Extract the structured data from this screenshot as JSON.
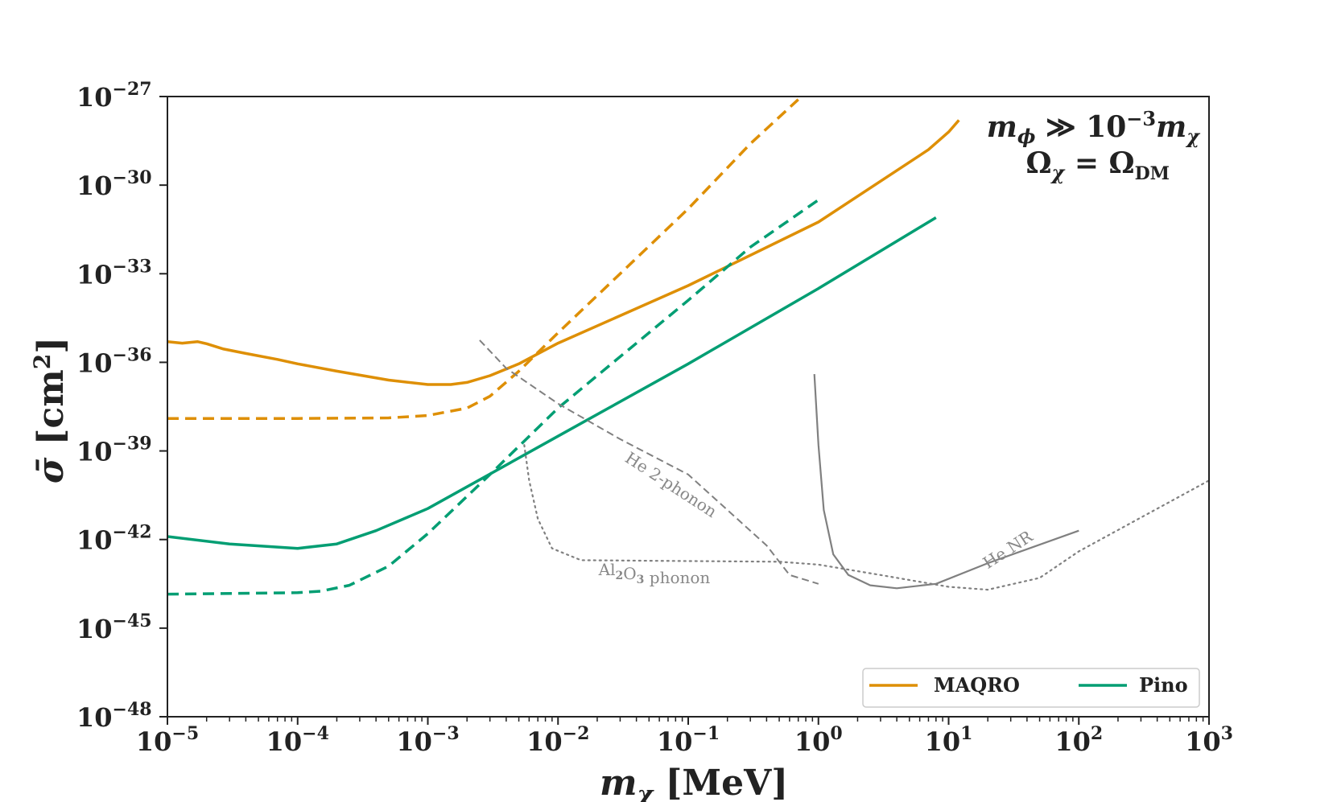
{
  "chart_data": {
    "type": "line",
    "xscale": "log",
    "yscale": "log",
    "xlim": [
      1e-05,
      1000
    ],
    "ylim": [
      1e-48,
      1e-27
    ],
    "xlabel": {
      "main": "m",
      "sub": "χ",
      "unit": " [MeV]"
    },
    "ylabel": {
      "main": "σ̄",
      "unit": " [cm",
      "sup": "2",
      "close": "]"
    },
    "x_ticks": [
      {
        "base": "10",
        "exp": "−5",
        "value": 1e-05
      },
      {
        "base": "10",
        "exp": "−4",
        "value": 0.0001
      },
      {
        "base": "10",
        "exp": "−3",
        "value": 0.001
      },
      {
        "base": "10",
        "exp": "−2",
        "value": 0.01
      },
      {
        "base": "10",
        "exp": "−1",
        "value": 0.1
      },
      {
        "base": "10",
        "exp": "0",
        "value": 1
      },
      {
        "base": "10",
        "exp": "1",
        "value": 10
      },
      {
        "base": "10",
        "exp": "2",
        "value": 100
      },
      {
        "base": "10",
        "exp": "3",
        "value": 1000
      }
    ],
    "y_ticks": [
      {
        "base": "10",
        "exp": "−27",
        "value": 1e-27
      },
      {
        "base": "10",
        "exp": "−30",
        "value": 1e-30
      },
      {
        "base": "10",
        "exp": "−33",
        "value": 1e-33
      },
      {
        "base": "10",
        "exp": "−36",
        "value": 1e-36
      },
      {
        "base": "10",
        "exp": "−39",
        "value": 1e-39
      },
      {
        "base": "10",
        "exp": "−42",
        "value": 1e-42
      },
      {
        "base": "10",
        "exp": "−45",
        "value": 1e-45
      },
      {
        "base": "10",
        "exp": "−48",
        "value": 1e-48
      }
    ],
    "corner_annotation": {
      "line1": {
        "a": "m",
        "a_sub": "ϕ",
        "rel": " ≫ 10",
        "exp": "−3",
        "b": "m",
        "b_sub": "χ"
      },
      "line2": {
        "a": "Ω",
        "a_sub": "χ",
        "rel": " = Ω",
        "b_sub": "DM"
      }
    },
    "series": [
      {
        "name": "MAQRO",
        "color": "#de8f05",
        "style": "solid",
        "width": 3.5,
        "points": [
          [
            1e-05,
            -35.3
          ],
          [
            1.3e-05,
            -35.35
          ],
          [
            1.7e-05,
            -35.3
          ],
          [
            2e-05,
            -35.37
          ],
          [
            2.7e-05,
            -35.55
          ],
          [
            4e-05,
            -35.7
          ],
          [
            7e-05,
            -35.9
          ],
          [
            0.0001,
            -36.05
          ],
          [
            0.0002,
            -36.3
          ],
          [
            0.0005,
            -36.6
          ],
          [
            0.001,
            -36.75
          ],
          [
            0.0015,
            -36.75
          ],
          [
            0.002,
            -36.68
          ],
          [
            0.003,
            -36.45
          ],
          [
            0.005,
            -36.05
          ],
          [
            0.01,
            -35.35
          ],
          [
            0.1,
            -33.4
          ],
          [
            1,
            -31.25
          ],
          [
            7,
            -28.8
          ],
          [
            10,
            -28.2
          ],
          [
            12,
            -27.8
          ]
        ]
      },
      {
        "name": "MAQRO",
        "color": "#de8f05",
        "style": "dashed",
        "width": 3.5,
        "points": [
          [
            1e-05,
            -37.9
          ],
          [
            0.0001,
            -37.9
          ],
          [
            0.0005,
            -37.88
          ],
          [
            0.001,
            -37.8
          ],
          [
            0.002,
            -37.55
          ],
          [
            0.003,
            -37.15
          ],
          [
            0.005,
            -36.3
          ],
          [
            0.01,
            -35.0
          ],
          [
            0.03,
            -33.0
          ],
          [
            0.1,
            -30.8
          ],
          [
            0.3,
            -28.6
          ],
          [
            0.7,
            -27.1
          ]
        ]
      },
      {
        "name": "Pino",
        "color": "#029e73",
        "style": "solid",
        "width": 3.5,
        "points": [
          [
            1e-05,
            -41.9
          ],
          [
            3e-05,
            -42.15
          ],
          [
            0.0001,
            -42.3
          ],
          [
            0.0002,
            -42.15
          ],
          [
            0.0004,
            -41.7
          ],
          [
            0.001,
            -40.95
          ],
          [
            0.01,
            -38.5
          ],
          [
            0.1,
            -36.05
          ],
          [
            1,
            -33.5
          ],
          [
            8,
            -31.1
          ]
        ]
      },
      {
        "name": "Pino",
        "color": "#029e73",
        "style": "dashed",
        "width": 3.5,
        "points": [
          [
            1e-05,
            -43.85
          ],
          [
            0.0001,
            -43.8
          ],
          [
            0.00015,
            -43.75
          ],
          [
            0.00025,
            -43.55
          ],
          [
            0.0005,
            -42.9
          ],
          [
            0.001,
            -41.8
          ],
          [
            0.003,
            -39.8
          ],
          [
            0.01,
            -37.55
          ],
          [
            0.1,
            -33.9
          ],
          [
            0.3,
            -32.1
          ],
          [
            1,
            -30.5
          ]
        ]
      },
      {
        "name": "He 2-phonon",
        "color": "#808080",
        "style": "dashed",
        "width": 2,
        "points": [
          [
            0.0025,
            -35.25
          ],
          [
            0.004,
            -36.2
          ],
          [
            0.01,
            -37.4
          ],
          [
            0.03,
            -38.6
          ],
          [
            0.1,
            -39.8
          ],
          [
            0.2,
            -41.0
          ],
          [
            0.4,
            -42.2
          ],
          [
            0.6,
            -43.2
          ],
          [
            1,
            -43.5
          ]
        ]
      },
      {
        "name": "Al2O3 phonon",
        "color": "#808080",
        "style": "dotted",
        "width": 2.2,
        "points": [
          [
            0.0055,
            -38.8
          ],
          [
            0.006,
            -40.0
          ],
          [
            0.007,
            -41.3
          ],
          [
            0.009,
            -42.3
          ],
          [
            0.015,
            -42.7
          ],
          [
            0.05,
            -42.72
          ],
          [
            0.5,
            -42.75
          ],
          [
            1,
            -42.85
          ],
          [
            3,
            -43.2
          ],
          [
            10,
            -43.6
          ],
          [
            20,
            -43.7
          ],
          [
            50,
            -43.3
          ],
          [
            100,
            -42.4
          ],
          [
            1000,
            -40.0
          ]
        ]
      },
      {
        "name": "He NR",
        "color": "#808080",
        "style": "solid",
        "width": 2.2,
        "points": [
          [
            0.93,
            -36.4
          ],
          [
            1,
            -38.8
          ],
          [
            1.1,
            -41.0
          ],
          [
            1.3,
            -42.5
          ],
          [
            1.7,
            -43.2
          ],
          [
            2.5,
            -43.55
          ],
          [
            4,
            -43.65
          ],
          [
            8,
            -43.5
          ],
          [
            20,
            -42.8
          ],
          [
            100,
            -41.7
          ]
        ]
      }
    ],
    "annotations": [
      {
        "name": "He 2-phonon",
        "text_parts": [
          "He 2-phonon"
        ],
        "x": 0.07,
        "y": -40.3,
        "rotate": 33
      },
      {
        "name": "Al2O3 phonon",
        "text_parts": [
          "Al",
          "2",
          "O",
          "3",
          " phonon"
        ],
        "x": 0.055,
        "y": -43.2,
        "rotate": 0
      },
      {
        "name": "He NR",
        "text_parts": [
          "He NR"
        ],
        "x": 30,
        "y": -42.5,
        "rotate": -33
      }
    ],
    "legend": {
      "position": "lower-right",
      "entries": [
        {
          "label": "MAQRO",
          "color": "#de8f05"
        },
        {
          "label": "Pino",
          "color": "#029e73"
        }
      ]
    }
  }
}
